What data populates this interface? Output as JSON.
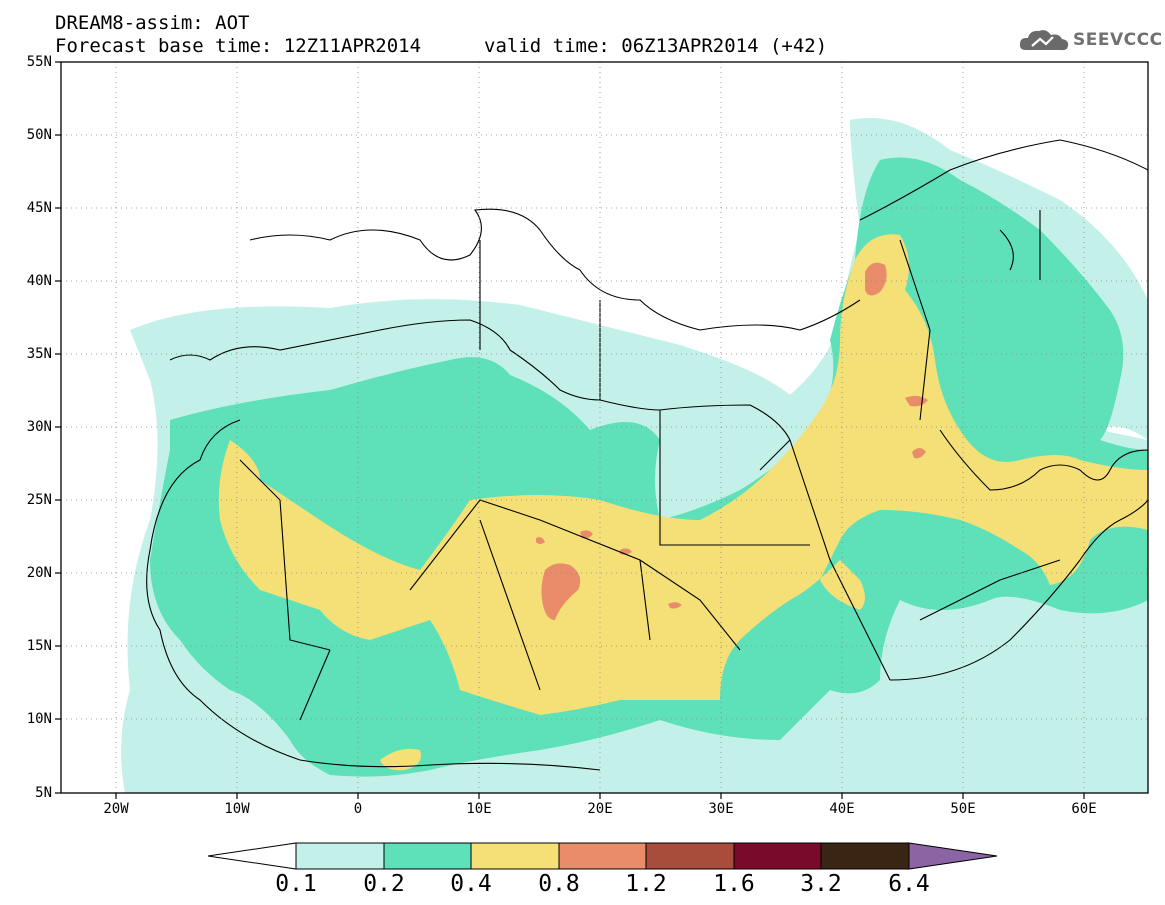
{
  "title": {
    "line1": "DREAM8-assim: AOT",
    "line2": "Forecast base time: 12Z11APR2014",
    "valid": "valid time: 06Z13APR2014 (+42)"
  },
  "logo": {
    "text": "SEEVCCC",
    "icon": "cloud-icon"
  },
  "map": {
    "projection": "lat-lon",
    "lon_range": [
      -25,
      65
    ],
    "lat_range": [
      5,
      55
    ],
    "lat_labels": [
      "55N",
      "50N",
      "45N",
      "40N",
      "35N",
      "30N",
      "25N",
      "20N",
      "15N",
      "10N",
      "5N"
    ],
    "lon_labels": [
      "20W",
      "10W",
      "0",
      "10E",
      "20E",
      "30E",
      "40E",
      "50E",
      "60E"
    ],
    "grid": "dotted"
  },
  "colorbar": {
    "labels": [
      "0.1",
      "0.2",
      "0.4",
      "0.8",
      "1.2",
      "1.6",
      "3.2",
      "6.4"
    ],
    "colors": [
      "#c3f1ea",
      "#5ee0b8",
      "#f4e077",
      "#e98c6a",
      "#a84c3c",
      "#7a0a2c",
      "#3a2414",
      "#8c64a4"
    ],
    "below_color": "#ffffff"
  }
}
